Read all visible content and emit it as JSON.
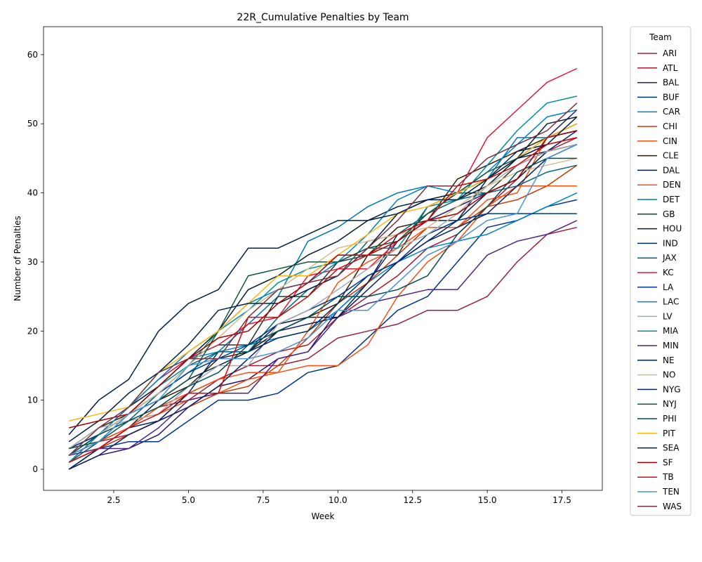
{
  "chart_data": {
    "type": "line",
    "title": "22R_Cumulative Penalties by Team",
    "xlabel": "Week",
    "ylabel": "Number of Penalties",
    "xlim": [
      0.15,
      18.85
    ],
    "ylim": [
      -3.05,
      64.05
    ],
    "xticks": [
      2.5,
      5.0,
      7.5,
      10.0,
      12.5,
      15.0,
      17.5
    ],
    "xtick_labels": [
      "2.5",
      "5.0",
      "7.5",
      "10.0",
      "12.5",
      "15.0",
      "17.5"
    ],
    "yticks": [
      0,
      10,
      20,
      30,
      40,
      50,
      60
    ],
    "ytick_labels": [
      "0",
      "10",
      "20",
      "30",
      "40",
      "50",
      "60"
    ],
    "grid": false,
    "legend": {
      "title": "Team",
      "placement": "outside-right"
    },
    "x": [
      1,
      2,
      3,
      4,
      5,
      6,
      7,
      8,
      9,
      10,
      11,
      12,
      13,
      14,
      15,
      16,
      17,
      18
    ],
    "series": [
      {
        "name": "ARI",
        "color": "#97233F",
        "values": [
          2,
          4,
          6,
          9,
          10,
          13,
          15,
          15,
          16,
          19,
          20,
          21,
          23,
          23,
          25,
          30,
          34,
          35
        ]
      },
      {
        "name": "ATL",
        "color": "#A71930",
        "values": [
          3,
          4,
          5,
          7,
          11,
          13,
          15,
          17,
          18,
          22,
          25,
          28,
          32,
          34,
          38,
          42,
          46,
          48
        ]
      },
      {
        "name": "BAL",
        "color": "#241773",
        "values": [
          0,
          2,
          3,
          5,
          9,
          12,
          13,
          16,
          17,
          23,
          27,
          33,
          36,
          38,
          40,
          42,
          48,
          52
        ]
      },
      {
        "name": "BUF",
        "color": "#00338D",
        "values": [
          1,
          3,
          4,
          4,
          7,
          10,
          10,
          11,
          14,
          15,
          19,
          23,
          25,
          30,
          35,
          36,
          38,
          39
        ]
      },
      {
        "name": "CAR",
        "color": "#0085CA",
        "values": [
          2,
          4,
          8,
          12,
          16,
          17,
          18,
          19,
          20,
          23,
          27,
          30,
          32,
          33,
          34,
          36,
          38,
          40
        ]
      },
      {
        "name": "CHI",
        "color": "#C83803",
        "values": [
          1,
          3,
          5,
          7,
          9,
          11,
          12,
          15,
          19,
          24,
          27,
          31,
          35,
          35,
          38,
          39,
          41,
          44
        ]
      },
      {
        "name": "CIN",
        "color": "#FB4F14",
        "values": [
          2,
          4,
          7,
          8,
          10,
          11,
          13,
          14,
          15,
          15,
          18,
          25,
          30,
          33,
          38,
          41,
          41,
          41
        ]
      },
      {
        "name": "CLE",
        "color": "#311D00",
        "values": [
          3,
          6,
          8,
          10,
          12,
          16,
          17,
          20,
          22,
          24,
          31,
          35,
          36,
          42,
          44,
          46,
          48,
          49
        ]
      },
      {
        "name": "DAL",
        "color": "#041E42",
        "values": [
          0,
          3,
          6,
          10,
          13,
          15,
          17,
          21,
          22,
          22,
          27,
          34,
          36,
          36,
          42,
          45,
          46,
          47
        ]
      },
      {
        "name": "DEN",
        "color": "#FB4F14",
        "values": [
          1,
          4,
          6,
          9,
          11,
          13,
          14,
          14,
          20,
          27,
          30,
          32,
          35,
          35,
          39,
          40,
          48,
          50
        ]
      },
      {
        "name": "DET",
        "color": "#0076B6",
        "values": [
          3,
          5,
          8,
          11,
          14,
          17,
          21,
          25,
          33,
          35,
          38,
          40,
          41,
          41,
          42,
          48,
          48,
          49
        ]
      },
      {
        "name": "GB",
        "color": "#203731",
        "values": [
          3,
          5,
          8,
          12,
          16,
          18,
          18,
          25,
          25,
          30,
          31,
          31,
          38,
          40,
          40,
          44,
          46,
          47
        ]
      },
      {
        "name": "HOU",
        "color": "#03202F",
        "values": [
          2,
          5,
          9,
          12,
          16,
          20,
          26,
          28,
          31,
          33,
          36,
          38,
          39,
          39,
          41,
          45,
          50,
          51
        ]
      },
      {
        "name": "IND",
        "color": "#002C5F",
        "values": [
          0,
          3,
          6,
          7,
          11,
          17,
          17,
          19,
          20,
          24,
          28,
          30,
          33,
          36,
          40,
          42,
          46,
          49
        ]
      },
      {
        "name": "JAX",
        "color": "#006778",
        "values": [
          1,
          4,
          7,
          11,
          15,
          17,
          17,
          22,
          26,
          28,
          33,
          34,
          37,
          39,
          40,
          41,
          43,
          44
        ]
      },
      {
        "name": "KC",
        "color": "#E31837",
        "values": [
          2,
          5,
          9,
          13,
          16,
          18,
          21,
          22,
          28,
          29,
          29,
          33,
          37,
          40,
          48,
          52,
          56,
          58
        ]
      },
      {
        "name": "LA",
        "color": "#003594",
        "values": [
          3,
          5,
          8,
          11,
          14,
          16,
          18,
          21,
          23,
          25,
          28,
          30,
          34,
          36,
          37,
          37,
          37,
          37
        ]
      },
      {
        "name": "LAC",
        "color": "#0080C6",
        "values": [
          1,
          5,
          9,
          13,
          17,
          20,
          24,
          26,
          27,
          30,
          34,
          39,
          41,
          40,
          43,
          47,
          51,
          52
        ]
      },
      {
        "name": "LV",
        "color": "#A5ACAF",
        "values": [
          3,
          6,
          7,
          8,
          12,
          15,
          15,
          21,
          23,
          26,
          29,
          32,
          34,
          37,
          41,
          44,
          46,
          47
        ]
      },
      {
        "name": "MIA",
        "color": "#008E97",
        "values": [
          1,
          5,
          8,
          12,
          15,
          20,
          23,
          27,
          29,
          30,
          32,
          32,
          38,
          39,
          44,
          49,
          53,
          54
        ]
      },
      {
        "name": "MIN",
        "color": "#4F2683",
        "values": [
          2,
          3,
          3,
          6,
          10,
          11,
          11,
          16,
          17,
          22,
          24,
          25,
          26,
          26,
          31,
          33,
          34,
          36
        ]
      },
      {
        "name": "NE",
        "color": "#002244",
        "values": [
          5,
          10,
          13,
          20,
          24,
          26,
          32,
          32,
          34,
          36,
          36,
          37,
          39,
          40,
          42,
          46,
          47,
          48
        ]
      },
      {
        "name": "NO",
        "color": "#D3BC8D",
        "values": [
          2,
          5,
          8,
          11,
          15,
          19,
          23,
          26,
          29,
          32,
          33,
          34,
          35,
          38,
          41,
          43,
          44,
          45
        ]
      },
      {
        "name": "NYG",
        "color": "#0B2265",
        "values": [
          0,
          2,
          5,
          7,
          9,
          12,
          16,
          20,
          21,
          22,
          26,
          30,
          33,
          35,
          37,
          41,
          45,
          47
        ]
      },
      {
        "name": "NYJ",
        "color": "#125740",
        "values": [
          3,
          4,
          8,
          10,
          13,
          20,
          28,
          29,
          30,
          30,
          32,
          33,
          37,
          40,
          43,
          45,
          48,
          50
        ]
      },
      {
        "name": "PHI",
        "color": "#004C54",
        "values": [
          2,
          5,
          7,
          9,
          12,
          14,
          18,
          20,
          22,
          25,
          25,
          26,
          28,
          34,
          38,
          43,
          45,
          45
        ]
      },
      {
        "name": "PIT",
        "color": "#FFB612",
        "values": [
          7,
          8,
          9,
          14,
          17,
          20,
          24,
          28,
          28,
          31,
          34,
          37,
          38,
          40,
          42,
          45,
          48,
          50
        ]
      },
      {
        "name": "SEA",
        "color": "#002244",
        "values": [
          4,
          7,
          11,
          14,
          18,
          23,
          24,
          24,
          26,
          28,
          32,
          37,
          39,
          39,
          42,
          45,
          47,
          51
        ]
      },
      {
        "name": "SF",
        "color": "#AA0000",
        "values": [
          6,
          7,
          8,
          12,
          16,
          19,
          20,
          24,
          27,
          31,
          31,
          33,
          36,
          37,
          40,
          42,
          48,
          49
        ]
      },
      {
        "name": "TB",
        "color": "#D50A0A",
        "values": [
          1,
          3,
          6,
          8,
          11,
          11,
          22,
          22,
          25,
          29,
          31,
          34,
          36,
          41,
          42,
          44,
          47,
          48
        ]
      },
      {
        "name": "TEN",
        "color": "#4B92DB",
        "values": [
          2,
          4,
          8,
          10,
          15,
          16,
          16,
          17,
          19,
          23,
          23,
          27,
          31,
          33,
          36,
          37,
          45,
          47
        ]
      },
      {
        "name": "WAS",
        "color": "#773141",
        "values": [
          2,
          6,
          9,
          14,
          16,
          16,
          22,
          26,
          27,
          28,
          32,
          36,
          41,
          41,
          45,
          47,
          49,
          53
        ]
      }
    ]
  }
}
